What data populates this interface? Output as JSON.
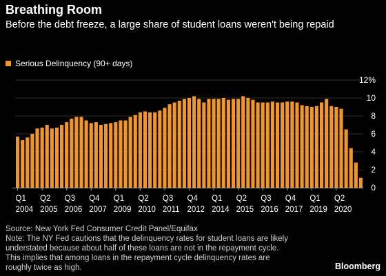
{
  "header": {
    "title": "Breathing Room",
    "subtitle": "Before the debt freeze, a large share of student loans weren't being repaid"
  },
  "legend": {
    "label": "Serious Delinquency (90+ days)"
  },
  "colors": {
    "bar": "#f0962b",
    "background": "#000000",
    "axis": "#9a9a9a"
  },
  "chart_data": {
    "type": "bar",
    "series": [
      {
        "name": "Serious Delinquency (90+ days)",
        "color": "#f0962b"
      }
    ],
    "x_start": {
      "year": 2004,
      "quarter": 1
    },
    "ylim": [
      0,
      12
    ],
    "y_ticks": [
      "0",
      "2",
      "4",
      "6",
      "8",
      "10",
      "12%"
    ],
    "x_tick_labels": [
      {
        "quarter": "Q1",
        "year": "2004"
      },
      {
        "quarter": "Q2",
        "year": "2005"
      },
      {
        "quarter": "Q3",
        "year": "2006"
      },
      {
        "quarter": "Q4",
        "year": "2007"
      },
      {
        "quarter": "Q1",
        "year": "2009"
      },
      {
        "quarter": "Q2",
        "year": "2010"
      },
      {
        "quarter": "Q3",
        "year": "2011"
      },
      {
        "quarter": "Q4",
        "year": "2012"
      },
      {
        "quarter": "Q1",
        "year": "2014"
      },
      {
        "quarter": "Q2",
        "year": "2015"
      },
      {
        "quarter": "Q3",
        "year": "2016"
      },
      {
        "quarter": "Q4",
        "year": "2017"
      },
      {
        "quarter": "Q1",
        "year": "2019"
      },
      {
        "quarter": "Q2",
        "year": "2020"
      }
    ],
    "values": [
      5.7,
      5.3,
      5.6,
      6.0,
      6.6,
      6.7,
      7.0,
      6.6,
      6.7,
      7.0,
      7.3,
      7.7,
      7.9,
      7.9,
      7.5,
      7.2,
      7.3,
      7.0,
      7.1,
      7.2,
      7.3,
      7.5,
      7.5,
      7.9,
      8.1,
      8.4,
      8.5,
      8.4,
      8.4,
      8.6,
      8.9,
      9.3,
      9.5,
      9.7,
      9.9,
      10.0,
      10.2,
      9.9,
      9.5,
      9.9,
      9.9,
      9.9,
      10.0,
      9.8,
      9.9,
      9.9,
      10.2,
      10.0,
      9.8,
      9.5,
      9.5,
      9.5,
      9.6,
      9.5,
      9.5,
      9.6,
      9.6,
      9.5,
      9.2,
      9.1,
      9.0,
      9.1,
      9.5,
      9.9,
      9.1,
      9.0,
      8.8,
      6.5,
      4.4,
      2.8,
      1.1
    ]
  },
  "footer": {
    "source": "Source: New York Fed Consumer Credit Panel/Equifax",
    "note_lines": [
      "Note: The NY Fed cautions that the delinquency rates for student loans are likely",
      "understated because about half of these loans are not in the repayment cycle.",
      "This implies that among loans in the repayment cycle delinquency rates are",
      "roughly twice as high."
    ],
    "brand": "Bloomberg"
  }
}
